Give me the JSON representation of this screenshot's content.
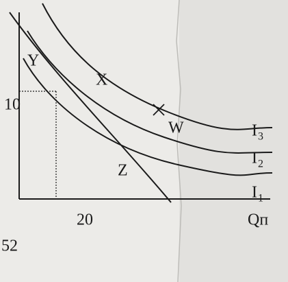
{
  "axes": {
    "y_tick": "10",
    "x_tick": "20",
    "x_label": "Qп"
  },
  "points": [
    {
      "label": "Y"
    },
    {
      "label": "X"
    },
    {
      "label": "W"
    },
    {
      "label": "Z"
    }
  ],
  "curves": [
    {
      "label": "I",
      "subscript": "3"
    },
    {
      "label": "I",
      "subscript": "2"
    },
    {
      "label": "I",
      "subscript": "1"
    }
  ],
  "page_number": "52"
}
